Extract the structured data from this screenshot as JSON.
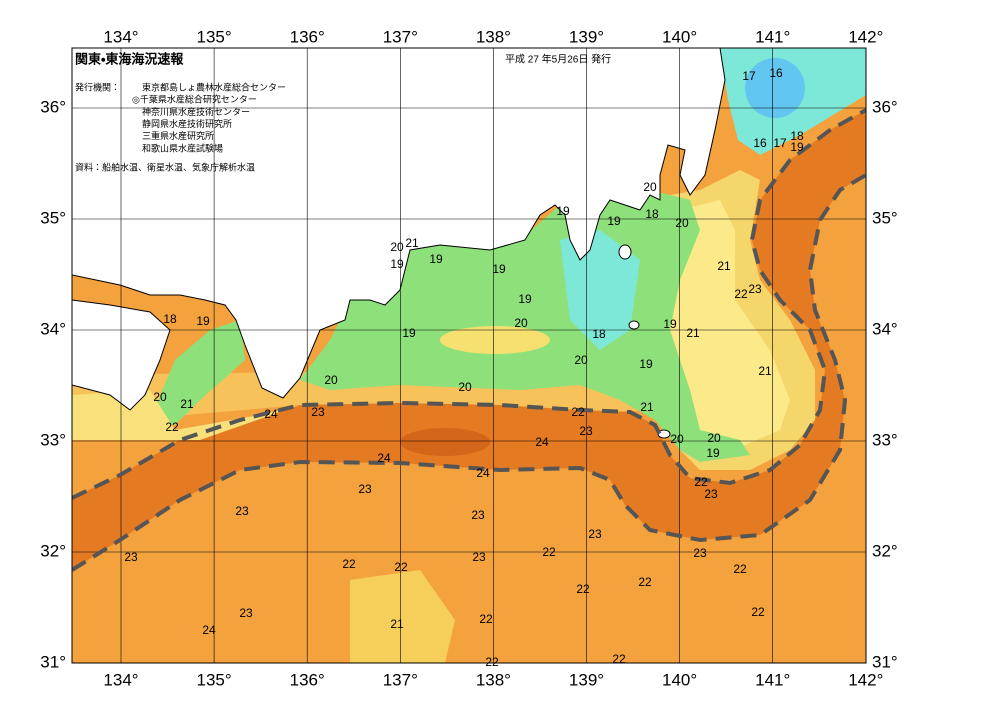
{
  "header": {
    "title": "関東・東海海況速報",
    "date": "平成 27 年5月26日 発行"
  },
  "issuers": {
    "label": "発行機関：",
    "agencies": [
      "東京都島しょ農林水産総合センター",
      "◎千葉県水産総合研究センター",
      "神奈川県水産技術センター",
      "静岡県水産技術研究所",
      "三重県水産研究所",
      "和歌山県水産試験場"
    ]
  },
  "source": "資料：船舶水温、衛星水温、気象庁解析水温",
  "lon_labels": [
    "134°",
    "135°",
    "136°",
    "137°",
    "138°",
    "139°",
    "140°",
    "141°",
    "142°"
  ],
  "lat_labels": [
    "36°",
    "35°",
    "34°",
    "33°",
    "32°",
    "31°"
  ],
  "contour_labels": [
    17,
    16,
    16,
    17,
    18,
    19,
    20,
    18,
    20,
    19,
    19,
    20,
    21,
    19,
    19,
    19,
    21,
    22,
    23,
    19,
    18,
    19,
    20,
    19,
    21,
    19,
    18,
    20,
    19,
    21,
    20,
    20,
    20,
    21,
    22,
    24,
    23,
    22,
    21,
    23,
    24,
    20,
    20,
    19,
    24,
    24,
    22,
    23,
    23,
    23,
    23,
    23,
    23,
    22,
    22,
    23,
    22,
    23,
    22,
    22,
    22,
    23,
    22,
    24,
    21,
    22,
    22,
    22
  ]
}
